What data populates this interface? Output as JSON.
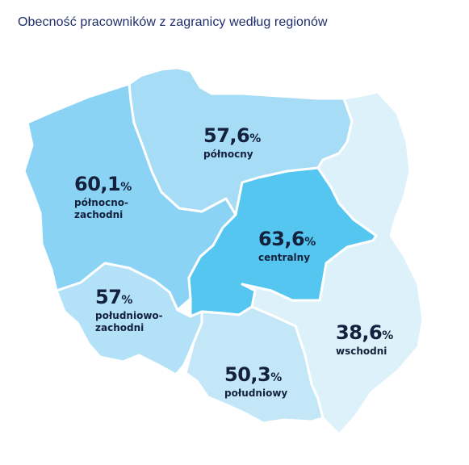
{
  "title": "Obecność pracowników z zagranicy według regionów",
  "colors": {
    "title": "#1f2d6b",
    "text": "#14213d",
    "border": "#ffffff"
  },
  "regions": [
    {
      "id": "polnocno-zachodni",
      "value": "60,1",
      "unit": "%",
      "name": "północno-\nzachodni",
      "fill": "#8bd3f4"
    },
    {
      "id": "polnocny",
      "value": "57,6",
      "unit": "%",
      "name": "północny",
      "fill": "#a6dcf5"
    },
    {
      "id": "centralny",
      "value": "63,6",
      "unit": "%",
      "name": "centralny",
      "fill": "#55c6f0"
    },
    {
      "id": "poludniowo-zachodni",
      "value": "57",
      "unit": "%",
      "name": "południowo-\nzachodni",
      "fill": "#b3e1f7"
    },
    {
      "id": "poludniowy",
      "value": "50,3",
      "unit": "%",
      "name": "południowy",
      "fill": "#c4e7f8"
    },
    {
      "id": "wschodni",
      "value": "38,6",
      "unit": "%",
      "name": "wschodni",
      "fill": "#ddf1fb"
    }
  ]
}
